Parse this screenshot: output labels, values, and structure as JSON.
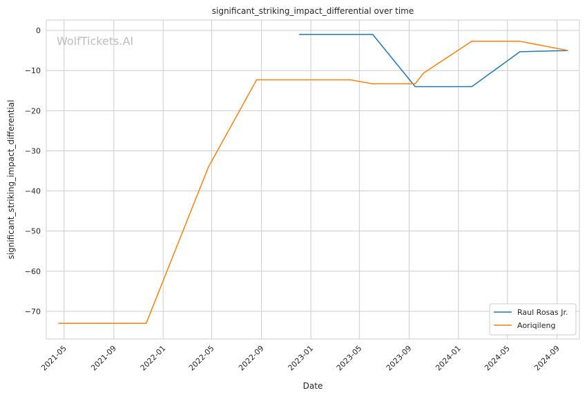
{
  "chart_data": {
    "type": "line",
    "title": "significant_striking_impact_differential over time",
    "xlabel": "Date",
    "ylabel": "significant_striking_impact_differential",
    "watermark": "WolfTickets.AI",
    "xlim": [
      "2021-03-18",
      "2024-10-26"
    ],
    "ylim": [
      -76.9,
      2.6
    ],
    "x_ticks": [
      "2021-05",
      "2021-09",
      "2022-01",
      "2022-05",
      "2022-09",
      "2023-01",
      "2023-05",
      "2023-09",
      "2024-01",
      "2024-05",
      "2024-09"
    ],
    "y_ticks": [
      0,
      -10,
      -20,
      -30,
      -40,
      -50,
      -60,
      -70
    ],
    "y_tick_labels": [
      "0",
      "−10",
      "−20",
      "−30",
      "−40",
      "−50",
      "−60",
      "−70"
    ],
    "grid": true,
    "legend_position": "bottom-right",
    "series": [
      {
        "name": "Raul Rosas Jr.",
        "color": "#1f77b4",
        "points": [
          {
            "x": "2022-12-03",
            "y": -1.0
          },
          {
            "x": "2023-06-03",
            "y": -1.0
          },
          {
            "x": "2023-09-16",
            "y": -14.0
          },
          {
            "x": "2024-02-03",
            "y": -14.0
          },
          {
            "x": "2024-06-01",
            "y": -5.3
          },
          {
            "x": "2024-09-28",
            "y": -5.0
          }
        ]
      },
      {
        "name": "Aoriqileng",
        "color": "#ff7f0e",
        "points": [
          {
            "x": "2021-04-17",
            "y": -73.0
          },
          {
            "x": "2021-11-20",
            "y": -73.0
          },
          {
            "x": "2022-04-23",
            "y": -34.0
          },
          {
            "x": "2022-08-20",
            "y": -12.3
          },
          {
            "x": "2023-04-08",
            "y": -12.3
          },
          {
            "x": "2023-06-03",
            "y": -13.3
          },
          {
            "x": "2023-09-16",
            "y": -13.3
          },
          {
            "x": "2023-10-07",
            "y": -10.6
          },
          {
            "x": "2024-02-03",
            "y": -2.7
          },
          {
            "x": "2024-06-01",
            "y": -2.7
          },
          {
            "x": "2024-09-28",
            "y": -5.0
          }
        ]
      }
    ]
  }
}
